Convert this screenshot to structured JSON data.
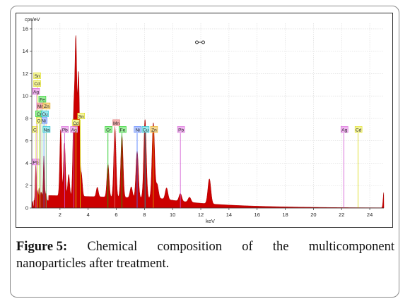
{
  "chart_data": {
    "type": "area",
    "ylabel": "cps/eV",
    "xlabel": "keV",
    "xlim": [
      0,
      25
    ],
    "ylim": [
      0,
      16.5
    ],
    "x_ticks": [
      "2",
      "4",
      "6",
      "8",
      "10",
      "12",
      "14",
      "16",
      "18",
      "20",
      "22",
      "24"
    ],
    "y_ticks": [
      "0",
      "2",
      "4",
      "6",
      "8",
      "10",
      "12",
      "14",
      "16"
    ],
    "series_color": "#cc0000",
    "background_level": 1.1,
    "peaks": [
      {
        "x": 0.05,
        "y": 0.6
      },
      {
        "x": 0.28,
        "y": 3.8
      },
      {
        "x": 0.4,
        "y": 1.6
      },
      {
        "x": 0.52,
        "y": 1.8
      },
      {
        "x": 0.64,
        "y": 1.4
      },
      {
        "x": 0.72,
        "y": 1.2
      },
      {
        "x": 0.85,
        "y": 4.6
      },
      {
        "x": 0.93,
        "y": 1.5
      },
      {
        "x": 1.02,
        "y": 1.2
      },
      {
        "x": 2.05,
        "y": 7.0
      },
      {
        "x": 2.32,
        "y": 5.8
      },
      {
        "x": 2.62,
        "y": 3.0
      },
      {
        "x": 2.98,
        "y": 8.2
      },
      {
        "x": 3.13,
        "y": 14.6
      },
      {
        "x": 3.32,
        "y": 11.9
      },
      {
        "x": 3.52,
        "y": 3.0
      },
      {
        "x": 4.65,
        "y": 1.7
      },
      {
        "x": 5.41,
        "y": 3.9
      },
      {
        "x": 5.9,
        "y": 7.2
      },
      {
        "x": 6.4,
        "y": 6.5
      },
      {
        "x": 7.06,
        "y": 1.9
      },
      {
        "x": 7.48,
        "y": 5.1
      },
      {
        "x": 8.04,
        "y": 7.9
      },
      {
        "x": 8.63,
        "y": 7.6
      },
      {
        "x": 8.9,
        "y": 2.1
      },
      {
        "x": 9.57,
        "y": 1.8
      },
      {
        "x": 10.55,
        "y": 1.3
      },
      {
        "x": 11.2,
        "y": 0.9
      },
      {
        "x": 12.61,
        "y": 2.6
      },
      {
        "x": 25.0,
        "y": 1.4
      }
    ],
    "element_lines": [
      {
        "label": "C",
        "x": 0.28,
        "color": "#d8d800"
      },
      {
        "label": "Pb",
        "x": 0.29,
        "color": "#d050d0"
      },
      {
        "label": "Sn",
        "x": 0.4,
        "color": "#d8d800"
      },
      {
        "label": "Cd",
        "x": 0.42,
        "color": "#d8d800"
      },
      {
        "label": "Ag",
        "x": 0.34,
        "color": "#d050d0"
      },
      {
        "label": "Fe",
        "x": 0.71,
        "color": "#00c000"
      },
      {
        "label": "Mn",
        "x": 0.64,
        "color": "#e07070"
      },
      {
        "label": "Zn",
        "x": 1.01,
        "color": "#e0a000"
      },
      {
        "label": "Cr",
        "x": 0.57,
        "color": "#00c000"
      },
      {
        "label": "Cu",
        "x": 0.93,
        "color": "#00b0c0"
      },
      {
        "label": "Ni",
        "x": 0.85,
        "color": "#4070ff"
      },
      {
        "label": "Na",
        "x": 1.04,
        "color": "#00b0c0"
      },
      {
        "label": "O",
        "x": 0.52,
        "color": "#d8d800"
      },
      {
        "label": "Pb",
        "x": 2.34,
        "color": "#d050d0"
      },
      {
        "label": "Ag",
        "x": 2.98,
        "color": "#d050d0"
      },
      {
        "label": "Cd",
        "x": 3.13,
        "color": "#d8d800"
      },
      {
        "label": "Sn",
        "x": 3.44,
        "color": "#d8d800"
      },
      {
        "label": "Cr",
        "x": 5.41,
        "color": "#00c000"
      },
      {
        "label": "Mn",
        "x": 5.9,
        "color": "#e07070"
      },
      {
        "label": "Fe",
        "x": 6.4,
        "color": "#00c000"
      },
      {
        "label": "Ni",
        "x": 7.48,
        "color": "#4070ff"
      },
      {
        "label": "Cu",
        "x": 8.04,
        "color": "#00b0c0"
      },
      {
        "label": "Zn",
        "x": 8.63,
        "color": "#e0a000"
      },
      {
        "label": "Pb",
        "x": 10.55,
        "color": "#d050d0"
      },
      {
        "label": "Ag",
        "x": 22.16,
        "color": "#d050d0"
      },
      {
        "label": "Cd",
        "x": 23.17,
        "color": "#d8d800"
      }
    ],
    "label_colors": {
      "#d8d800": "#f5f59a",
      "#d050d0": "#f1b5f1",
      "#00c000": "#9af09a",
      "#e07070": "#f4b0b0",
      "#e0a000": "#f6d78f",
      "#00b0c0": "#9ae9f0",
      "#4070ff": "#b3c6ff"
    }
  },
  "caption": {
    "label": "Figure 5:",
    "line1_words": [
      "Chemical",
      "composition",
      "of",
      "the",
      "multicomponent"
    ],
    "line2": "nanoparticles after treatment."
  }
}
